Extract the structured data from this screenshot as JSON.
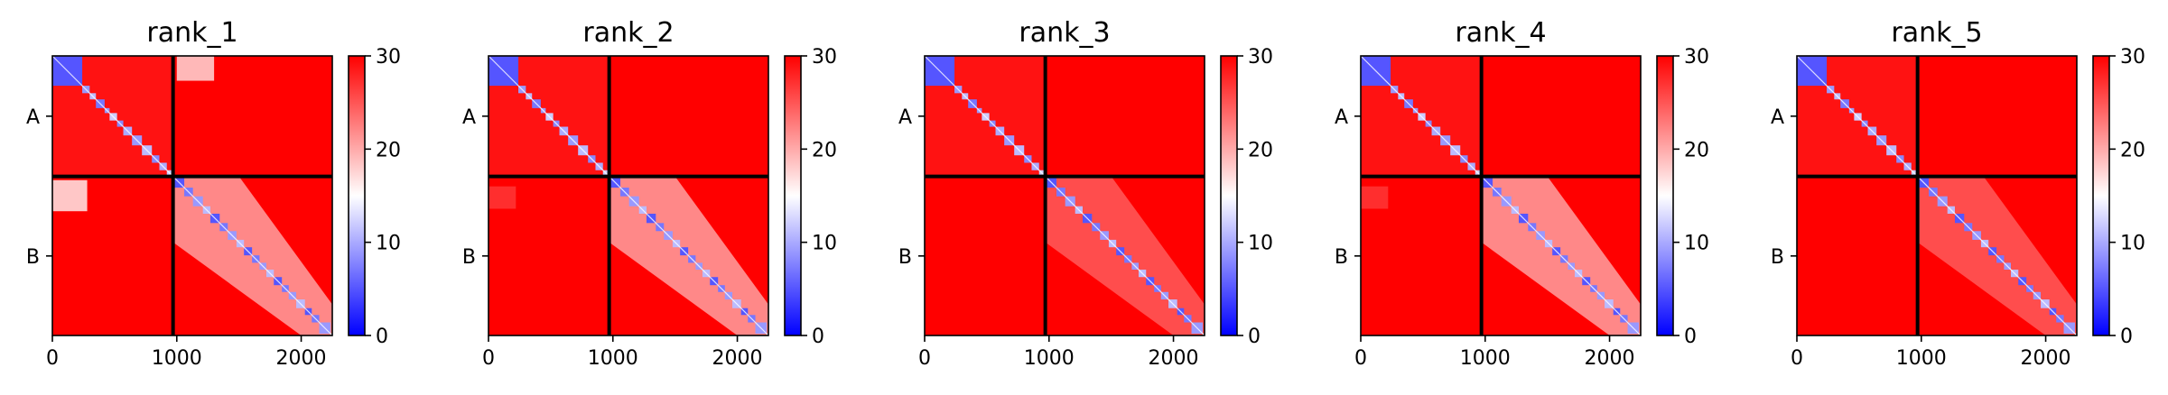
{
  "chart_data": [
    {
      "type": "heatmap",
      "title": "rank_1",
      "x_ticks": [
        0,
        1000,
        2000
      ],
      "x_range": [
        0,
        2250
      ],
      "chain_labels": [
        "A",
        "B"
      ],
      "chain_boundary": 970,
      "colorbar": {
        "min": 0,
        "max": 30,
        "ticks": [
          0,
          10,
          20,
          30
        ],
        "colors": [
          "#0000ff",
          "#ffffff",
          "#ff0000"
        ]
      },
      "offdiag_patches": true,
      "extra_structure": true
    },
    {
      "type": "heatmap",
      "title": "rank_2",
      "x_ticks": [
        0,
        1000,
        2000
      ],
      "x_range": [
        0,
        2250
      ],
      "chain_labels": [
        "A",
        "B"
      ],
      "chain_boundary": 970,
      "colorbar": {
        "min": 0,
        "max": 30,
        "ticks": [
          0,
          10,
          20,
          30
        ],
        "colors": [
          "#0000ff",
          "#ffffff",
          "#ff0000"
        ]
      },
      "offdiag_patches": false,
      "extra_structure": true
    },
    {
      "type": "heatmap",
      "title": "rank_3",
      "x_ticks": [
        0,
        1000,
        2000
      ],
      "x_range": [
        0,
        2250
      ],
      "chain_labels": [
        "A",
        "B"
      ],
      "chain_boundary": 970,
      "colorbar": {
        "min": 0,
        "max": 30,
        "ticks": [
          0,
          10,
          20,
          30
        ],
        "colors": [
          "#0000ff",
          "#ffffff",
          "#ff0000"
        ]
      },
      "offdiag_patches": false,
      "extra_structure": false
    },
    {
      "type": "heatmap",
      "title": "rank_4",
      "x_ticks": [
        0,
        1000,
        2000
      ],
      "x_range": [
        0,
        2250
      ],
      "chain_labels": [
        "A",
        "B"
      ],
      "chain_boundary": 970,
      "colorbar": {
        "min": 0,
        "max": 30,
        "ticks": [
          0,
          10,
          20,
          30
        ],
        "colors": [
          "#0000ff",
          "#ffffff",
          "#ff0000"
        ]
      },
      "offdiag_patches": false,
      "extra_structure": true
    },
    {
      "type": "heatmap",
      "title": "rank_5",
      "x_ticks": [
        0,
        1000,
        2000
      ],
      "x_range": [
        0,
        2250
      ],
      "chain_labels": [
        "A",
        "B"
      ],
      "chain_boundary": 970,
      "colorbar": {
        "min": 0,
        "max": 30,
        "ticks": [
          0,
          10,
          20,
          30
        ],
        "colors": [
          "#0000ff",
          "#ffffff",
          "#ff0000"
        ]
      },
      "offdiag_patches": false,
      "extra_structure": false
    }
  ]
}
